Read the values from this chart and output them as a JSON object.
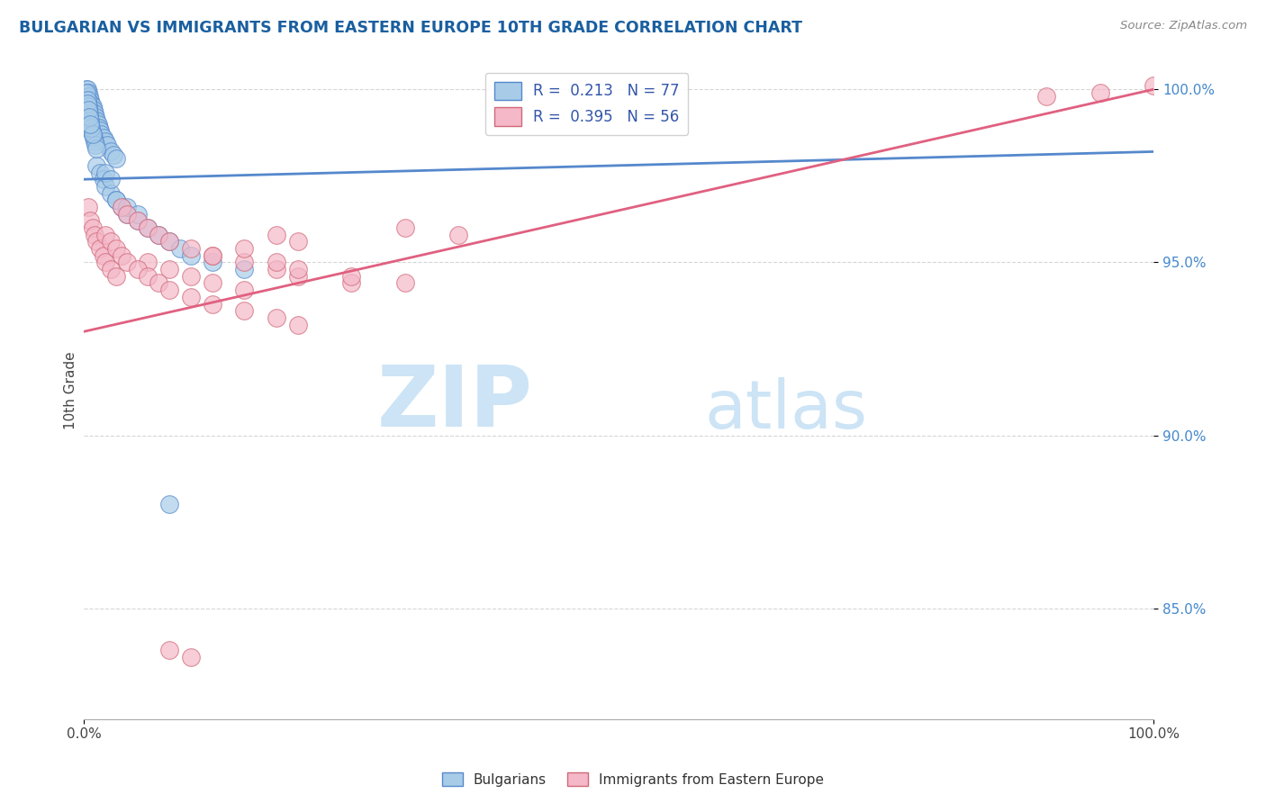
{
  "title": "BULGARIAN VS IMMIGRANTS FROM EASTERN EUROPE 10TH GRADE CORRELATION CHART",
  "source": "Source: ZipAtlas.com",
  "ylabel": "10th Grade",
  "xlim": [
    0.0,
    1.0
  ],
  "ylim": [
    0.818,
    1.008
  ],
  "legend_label1": "Bulgarians",
  "legend_label2": "Immigrants from Eastern Europe",
  "r1": 0.213,
  "n1": 77,
  "r2": 0.395,
  "n2": 56,
  "color1": "#a8cce8",
  "color2": "#f4b8c8",
  "line_color1": "#5588cc",
  "line_color2": "#e06080",
  "title_color": "#1a5fa0",
  "source_color": "#888888",
  "legend_text_color": "#3355aa",
  "watermark_color": "#cce4f5",
  "background_color": "#ffffff",
  "grid_color": "#cccccc",
  "blue_x": [
    0.002,
    0.002,
    0.002,
    0.003,
    0.003,
    0.003,
    0.003,
    0.004,
    0.004,
    0.004,
    0.005,
    0.005,
    0.005,
    0.006,
    0.006,
    0.007,
    0.007,
    0.008,
    0.008,
    0.009,
    0.009,
    0.01,
    0.01,
    0.011,
    0.012,
    0.013,
    0.014,
    0.015,
    0.016,
    0.018,
    0.02,
    0.022,
    0.025,
    0.028,
    0.03,
    0.012,
    0.015,
    0.018,
    0.02,
    0.025,
    0.03,
    0.035,
    0.04,
    0.05,
    0.06,
    0.07,
    0.08,
    0.09,
    0.1,
    0.12,
    0.15,
    0.004,
    0.005,
    0.006,
    0.007,
    0.008,
    0.009,
    0.01,
    0.011,
    0.012,
    0.002,
    0.003,
    0.004,
    0.005,
    0.006,
    0.007,
    0.008,
    0.003,
    0.004,
    0.005,
    0.006,
    0.03,
    0.04,
    0.05,
    0.08,
    0.02,
    0.025
  ],
  "blue_y": [
    1.0,
    0.998,
    0.997,
    1.0,
    0.998,
    0.996,
    0.994,
    0.999,
    0.997,
    0.995,
    0.998,
    0.996,
    0.994,
    0.997,
    0.995,
    0.996,
    0.994,
    0.995,
    0.993,
    0.994,
    0.992,
    0.993,
    0.991,
    0.992,
    0.991,
    0.99,
    0.989,
    0.988,
    0.987,
    0.986,
    0.985,
    0.984,
    0.982,
    0.981,
    0.98,
    0.978,
    0.976,
    0.974,
    0.972,
    0.97,
    0.968,
    0.966,
    0.964,
    0.962,
    0.96,
    0.958,
    0.956,
    0.954,
    0.952,
    0.95,
    0.948,
    0.993,
    0.991,
    0.989,
    0.988,
    0.987,
    0.986,
    0.985,
    0.984,
    0.983,
    0.999,
    0.997,
    0.995,
    0.993,
    0.991,
    0.989,
    0.987,
    0.996,
    0.994,
    0.992,
    0.99,
    0.968,
    0.966,
    0.964,
    0.88,
    0.976,
    0.974
  ],
  "pink_x": [
    0.004,
    0.006,
    0.008,
    0.01,
    0.012,
    0.015,
    0.018,
    0.02,
    0.025,
    0.03,
    0.035,
    0.04,
    0.05,
    0.06,
    0.07,
    0.08,
    0.1,
    0.12,
    0.15,
    0.18,
    0.2,
    0.25,
    0.3,
    0.35,
    0.06,
    0.08,
    0.1,
    0.12,
    0.15,
    0.02,
    0.025,
    0.03,
    0.035,
    0.04,
    0.05,
    0.06,
    0.07,
    0.08,
    0.1,
    0.12,
    0.15,
    0.18,
    0.2,
    0.18,
    0.2,
    0.15,
    0.12,
    0.18,
    0.2,
    0.25,
    0.3,
    0.9,
    0.95,
    1.0,
    0.08,
    0.1
  ],
  "pink_y": [
    0.966,
    0.962,
    0.96,
    0.958,
    0.956,
    0.954,
    0.952,
    0.95,
    0.948,
    0.946,
    0.966,
    0.964,
    0.962,
    0.96,
    0.958,
    0.956,
    0.954,
    0.952,
    0.95,
    0.948,
    0.946,
    0.944,
    0.96,
    0.958,
    0.95,
    0.948,
    0.946,
    0.944,
    0.942,
    0.958,
    0.956,
    0.954,
    0.952,
    0.95,
    0.948,
    0.946,
    0.944,
    0.942,
    0.94,
    0.938,
    0.936,
    0.934,
    0.932,
    0.958,
    0.956,
    0.954,
    0.952,
    0.95,
    0.948,
    0.946,
    0.944,
    0.998,
    0.999,
    1.001,
    0.838,
    0.836
  ]
}
